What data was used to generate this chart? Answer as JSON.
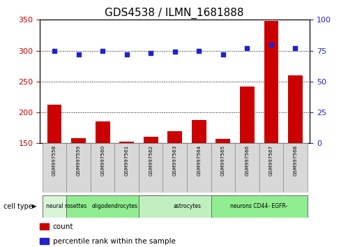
{
  "title": "GDS4538 / ILMN_1681888",
  "samples": [
    "GSM997558",
    "GSM997559",
    "GSM997560",
    "GSM997561",
    "GSM997562",
    "GSM997563",
    "GSM997564",
    "GSM997565",
    "GSM997566",
    "GSM997567",
    "GSM997568"
  ],
  "counts": [
    213,
    158,
    185,
    153,
    161,
    170,
    188,
    157,
    242,
    348,
    260
  ],
  "percentile_ranks": [
    75,
    72,
    75,
    72,
    73,
    74,
    75,
    72,
    77,
    80,
    77
  ],
  "cell_type_groups": [
    {
      "label": "neural rosettes",
      "start": 0,
      "end": 1,
      "color": "#d8f5d8"
    },
    {
      "label": "oligodendrocytes",
      "start": 1,
      "end": 4,
      "color": "#90ee90"
    },
    {
      "label": "astrocytes",
      "start": 4,
      "end": 7,
      "color": "#c0f0c0"
    },
    {
      "label": "neurons CD44- EGFR-",
      "start": 7,
      "end": 10,
      "color": "#90ee90"
    }
  ],
  "ylim_left": [
    150,
    350
  ],
  "ylim_right": [
    0,
    100
  ],
  "yticks_left": [
    150,
    200,
    250,
    300,
    350
  ],
  "yticks_right": [
    0,
    25,
    50,
    75,
    100
  ],
  "bar_color": "#cc0000",
  "dot_color": "#2222cc",
  "background_color": "#ffffff",
  "plot_bg_color": "#ffffff",
  "title_fontsize": 11,
  "tick_label_color_left": "#cc0000",
  "tick_label_color_right": "#2222cc",
  "legend_count_label": "count",
  "legend_pct_label": "percentile rank within the sample",
  "cell_type_label": "cell type",
  "hlines": [
    200,
    250,
    300
  ]
}
